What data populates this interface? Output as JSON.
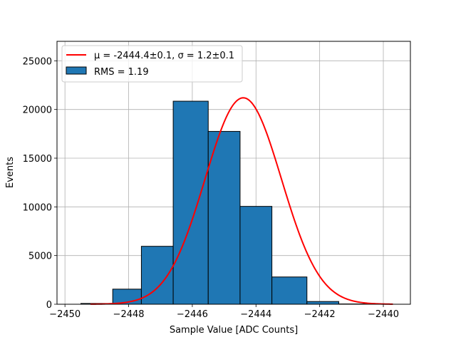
{
  "chart_data": {
    "type": "bar",
    "subtype": "histogram",
    "xlabel": "Sample Value [ADC Counts]",
    "ylabel": "Events",
    "xlim": [
      -2450.25,
      -2439.15
    ],
    "ylim": [
      0,
      27000
    ],
    "xticks": [
      -2450,
      -2448,
      -2446,
      -2444,
      -2442,
      -2440
    ],
    "xtick_labels": [
      "−2450",
      "−2448",
      "−2446",
      "−2444",
      "−2442",
      "−2440"
    ],
    "yticks": [
      0,
      5000,
      10000,
      15000,
      20000,
      25000
    ],
    "ytick_labels": [
      "0",
      "5000",
      "10000",
      "15000",
      "20000",
      "25000"
    ],
    "grid": true,
    "legend_position": "top-left",
    "histogram": {
      "name": "RMS = 1.19",
      "color": "#1f77b4",
      "edge_color": "#000000",
      "bins": [
        {
          "x0": -2449.5,
          "x1": -2448.5,
          "count": 80
        },
        {
          "x0": -2448.5,
          "x1": -2447.6,
          "count": 1550
        },
        {
          "x0": -2447.6,
          "x1": -2446.6,
          "count": 5950
        },
        {
          "x0": -2446.6,
          "x1": -2445.5,
          "count": 20850
        },
        {
          "x0": -2445.5,
          "x1": -2444.5,
          "count": 17750
        },
        {
          "x0": -2444.5,
          "x1": -2443.5,
          "count": 10050
        },
        {
          "x0": -2443.5,
          "x1": -2442.4,
          "count": 2800
        },
        {
          "x0": -2442.4,
          "x1": -2441.4,
          "count": 280
        },
        {
          "x0": -2441.4,
          "x1": -2440.4,
          "count": 30
        }
      ]
    },
    "fit": {
      "name": "μ = -2444.4±0.1, σ = 1.2±0.1",
      "color": "#ff0000",
      "mu": -2444.4,
      "sigma": 1.2,
      "amplitude": 21200,
      "x_range": [
        -2449.2,
        -2439.7
      ]
    }
  }
}
